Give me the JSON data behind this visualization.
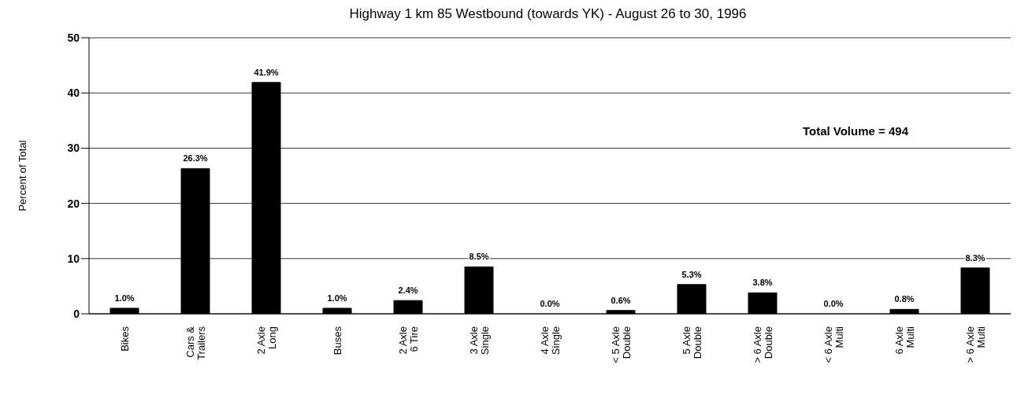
{
  "chart_data": {
    "type": "bar",
    "title": "Highway 1 km 85 Westbound (towards YK) - August 26 to 30, 1996",
    "ylabel": "Percent of Total",
    "categories": [
      "Bikes",
      "Cars &\nTrailers",
      "2 Axle\nLong",
      "Buses",
      "2 Axle\n6 Tire",
      "3 Axle\nSingle",
      "4 Axle\nSingle",
      "< 5 Axle\nDouble",
      "5 Axle\nDouble",
      "> 6 Axle\nDouble",
      "< 6 Axle\nMulti",
      "6 Axle\nMulti",
      "> 6 Axle\nMulti"
    ],
    "values": [
      1.0,
      26.3,
      41.9,
      1.0,
      2.4,
      8.5,
      0.0,
      0.6,
      5.3,
      3.8,
      0.0,
      0.8,
      8.3
    ],
    "value_labels": [
      "1.0%",
      "26.3%",
      "41.9%",
      "1.0%",
      "2.4%",
      "8.5%",
      "0.0%",
      "0.6%",
      "5.3%",
      "3.8%",
      "0.0%",
      "0.8%",
      "8.3%"
    ],
    "color": "#000000",
    "ylim": [
      0,
      50
    ],
    "yticks": [
      0,
      10,
      20,
      30,
      40,
      50
    ],
    "grid": "y",
    "annotations": [
      "Total Volume = 494"
    ]
  }
}
